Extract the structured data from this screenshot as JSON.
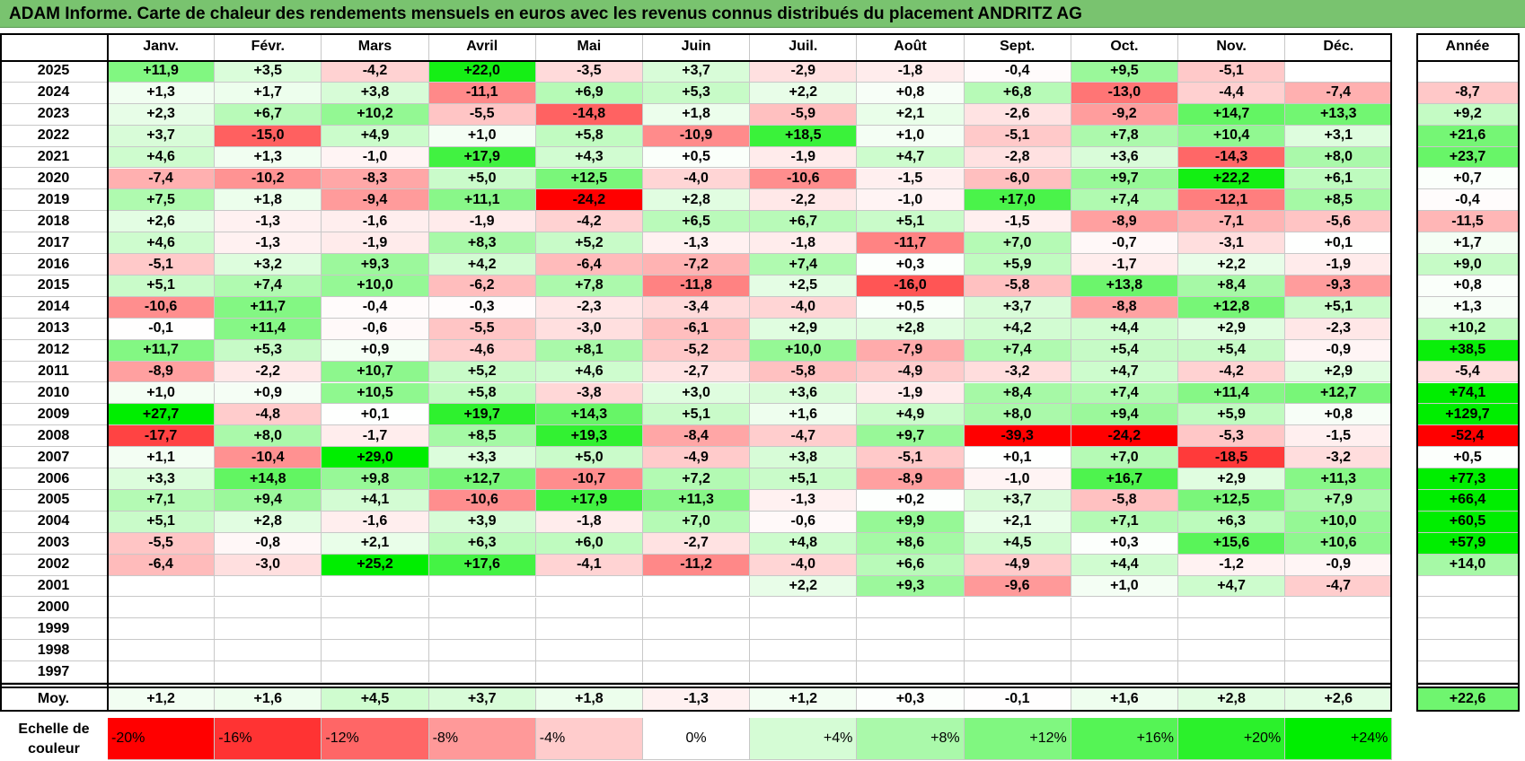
{
  "title": "ADAM Informe. Carte de chaleur des rendements mensuels en euros avec les revenus connus distribués du placement ANDRITZ AG",
  "year_col_label": "Année",
  "avg_label": "Moy.",
  "scale_label": "Echelle de couleur",
  "colors": {
    "title_bg": "#79c36f",
    "pos_max": "#00ee00",
    "neg_max": "#ff0000",
    "neutral": "#ffffff"
  },
  "chart_data": {
    "type": "heatmap",
    "months": [
      "Janv.",
      "Févr.",
      "Mars",
      "Avril",
      "Mai",
      "Juin",
      "Juil.",
      "Août",
      "Sept.",
      "Oct.",
      "Nov.",
      "Déc."
    ],
    "years": [
      "2025",
      "2024",
      "2023",
      "2022",
      "2021",
      "2020",
      "2019",
      "2018",
      "2017",
      "2016",
      "2015",
      "2014",
      "2013",
      "2012",
      "2011",
      "2010",
      "2009",
      "2008",
      "2007",
      "2006",
      "2005",
      "2004",
      "2003",
      "2002",
      "2001",
      "2000",
      "1999",
      "1998",
      "1997"
    ],
    "values": [
      [
        "+11,9",
        "+3,5",
        "-4,2",
        "+22,0",
        "-3,5",
        "+3,7",
        "-2,9",
        "-1,8",
        "-0,4",
        "+9,5",
        "-5,1",
        ""
      ],
      [
        "+1,3",
        "+1,7",
        "+3,8",
        "-11,1",
        "+6,9",
        "+5,3",
        "+2,2",
        "+0,8",
        "+6,8",
        "-13,0",
        "-4,4",
        "-7,4"
      ],
      [
        "+2,3",
        "+6,7",
        "+10,2",
        "-5,5",
        "-14,8",
        "+1,8",
        "-5,9",
        "+2,1",
        "-2,6",
        "-9,2",
        "+14,7",
        "+13,3"
      ],
      [
        "+3,7",
        "-15,0",
        "+4,9",
        "+1,0",
        "+5,8",
        "-10,9",
        "+18,5",
        "+1,0",
        "-5,1",
        "+7,8",
        "+10,4",
        "+3,1"
      ],
      [
        "+4,6",
        "+1,3",
        "-1,0",
        "+17,9",
        "+4,3",
        "+0,5",
        "-1,9",
        "+4,7",
        "-2,8",
        "+3,6",
        "-14,3",
        "+8,0"
      ],
      [
        "-7,4",
        "-10,2",
        "-8,3",
        "+5,0",
        "+12,5",
        "-4,0",
        "-10,6",
        "-1,5",
        "-6,0",
        "+9,7",
        "+22,2",
        "+6,1"
      ],
      [
        "+7,5",
        "+1,8",
        "-9,4",
        "+11,1",
        "-24,2",
        "+2,8",
        "-2,2",
        "-1,0",
        "+17,0",
        "+7,4",
        "-12,1",
        "+8,5"
      ],
      [
        "+2,6",
        "-1,3",
        "-1,6",
        "-1,9",
        "-4,2",
        "+6,5",
        "+6,7",
        "+5,1",
        "-1,5",
        "-8,9",
        "-7,1",
        "-5,6"
      ],
      [
        "+4,6",
        "-1,3",
        "-1,9",
        "+8,3",
        "+5,2",
        "-1,3",
        "-1,8",
        "-11,7",
        "+7,0",
        "-0,7",
        "-3,1",
        "+0,1"
      ],
      [
        "-5,1",
        "+3,2",
        "+9,3",
        "+4,2",
        "-6,4",
        "-7,2",
        "+7,4",
        "+0,3",
        "+5,9",
        "-1,7",
        "+2,2",
        "-1,9"
      ],
      [
        "+5,1",
        "+7,4",
        "+10,0",
        "-6,2",
        "+7,8",
        "-11,8",
        "+2,5",
        "-16,0",
        "-5,8",
        "+13,8",
        "+8,4",
        "-9,3"
      ],
      [
        "-10,6",
        "+11,7",
        "-0,4",
        "-0,3",
        "-2,3",
        "-3,4",
        "-4,0",
        "+0,5",
        "+3,7",
        "-8,8",
        "+12,8",
        "+5,1"
      ],
      [
        "-0,1",
        "+11,4",
        "-0,6",
        "-5,5",
        "-3,0",
        "-6,1",
        "+2,9",
        "+2,8",
        "+4,2",
        "+4,4",
        "+2,9",
        "-2,3"
      ],
      [
        "+11,7",
        "+5,3",
        "+0,9",
        "-4,6",
        "+8,1",
        "-5,2",
        "+10,0",
        "-7,9",
        "+7,4",
        "+5,4",
        "+5,4",
        "-0,9"
      ],
      [
        "-8,9",
        "-2,2",
        "+10,7",
        "+5,2",
        "+4,6",
        "-2,7",
        "-5,8",
        "-4,9",
        "-3,2",
        "+4,7",
        "-4,2",
        "+2,9"
      ],
      [
        "+1,0",
        "+0,9",
        "+10,5",
        "+5,8",
        "-3,8",
        "+3,0",
        "+3,6",
        "-1,9",
        "+8,4",
        "+7,4",
        "+11,4",
        "+12,7"
      ],
      [
        "+27,7",
        "-4,8",
        "+0,1",
        "+19,7",
        "+14,3",
        "+5,1",
        "+1,6",
        "+4,9",
        "+8,0",
        "+9,4",
        "+5,9",
        "+0,8"
      ],
      [
        "-17,7",
        "+8,0",
        "-1,7",
        "+8,5",
        "+19,3",
        "-8,4",
        "-4,7",
        "+9,7",
        "-39,3",
        "-24,2",
        "-5,3",
        "-1,5"
      ],
      [
        "+1,1",
        "-10,4",
        "+29,0",
        "+3,3",
        "+5,0",
        "-4,9",
        "+3,8",
        "-5,1",
        "+0,1",
        "+7,0",
        "-18,5",
        "-3,2"
      ],
      [
        "+3,3",
        "+14,8",
        "+9,8",
        "+12,7",
        "-10,7",
        "+7,2",
        "+5,1",
        "-8,9",
        "-1,0",
        "+16,7",
        "+2,9",
        "+11,3"
      ],
      [
        "+7,1",
        "+9,4",
        "+4,1",
        "-10,6",
        "+17,9",
        "+11,3",
        "-1,3",
        "+0,2",
        "+3,7",
        "-5,8",
        "+12,5",
        "+7,9"
      ],
      [
        "+5,1",
        "+2,8",
        "-1,6",
        "+3,9",
        "-1,8",
        "+7,0",
        "-0,6",
        "+9,9",
        "+2,1",
        "+7,1",
        "+6,3",
        "+10,0"
      ],
      [
        "-5,5",
        "-0,8",
        "+2,1",
        "+6,3",
        "+6,0",
        "-2,7",
        "+4,8",
        "+8,6",
        "+4,5",
        "+0,3",
        "+15,6",
        "+10,6"
      ],
      [
        "-6,4",
        "-3,0",
        "+25,2",
        "+17,6",
        "-4,1",
        "-11,2",
        "-4,0",
        "+6,6",
        "-4,9",
        "+4,4",
        "-1,2",
        "-0,9"
      ],
      [
        "",
        "",
        "",
        "",
        "",
        "",
        "+2,2",
        "+9,3",
        "-9,6",
        "+1,0",
        "+4,7",
        "-4,7"
      ],
      [
        "",
        "",
        "",
        "",
        "",
        "",
        "",
        "",
        "",
        "",
        "",
        ""
      ],
      [
        "",
        "",
        "",
        "",
        "",
        "",
        "",
        "",
        "",
        "",
        "",
        ""
      ],
      [
        "",
        "",
        "",
        "",
        "",
        "",
        "",
        "",
        "",
        "",
        "",
        ""
      ],
      [
        "",
        "",
        "",
        "",
        "",
        "",
        "",
        "",
        "",
        "",
        "",
        ""
      ]
    ],
    "annual": [
      "",
      "-8,7",
      "+9,2",
      "+21,6",
      "+23,7",
      "+0,7",
      "-0,4",
      "-11,5",
      "+1,7",
      "+9,0",
      "+0,8",
      "+1,3",
      "+10,2",
      "+38,5",
      "-5,4",
      "+74,1",
      "+129,7",
      "-52,4",
      "+0,5",
      "+77,3",
      "+66,4",
      "+60,5",
      "+57,9",
      "+14,0",
      "",
      "",
      "",
      "",
      ""
    ],
    "monthly_avg": [
      "+1,2",
      "+1,6",
      "+4,5",
      "+3,7",
      "+1,8",
      "-1,3",
      "+1,2",
      "+0,3",
      "-0,1",
      "+1,6",
      "+2,8",
      "+2,6"
    ],
    "annual_avg": "+22,6",
    "color_scale": [
      "-20%",
      "-16%",
      "-12%",
      "-8%",
      "-4%",
      "0%",
      "+4%",
      "+8%",
      "+12%",
      "+16%",
      "+20%",
      "+24%"
    ]
  }
}
